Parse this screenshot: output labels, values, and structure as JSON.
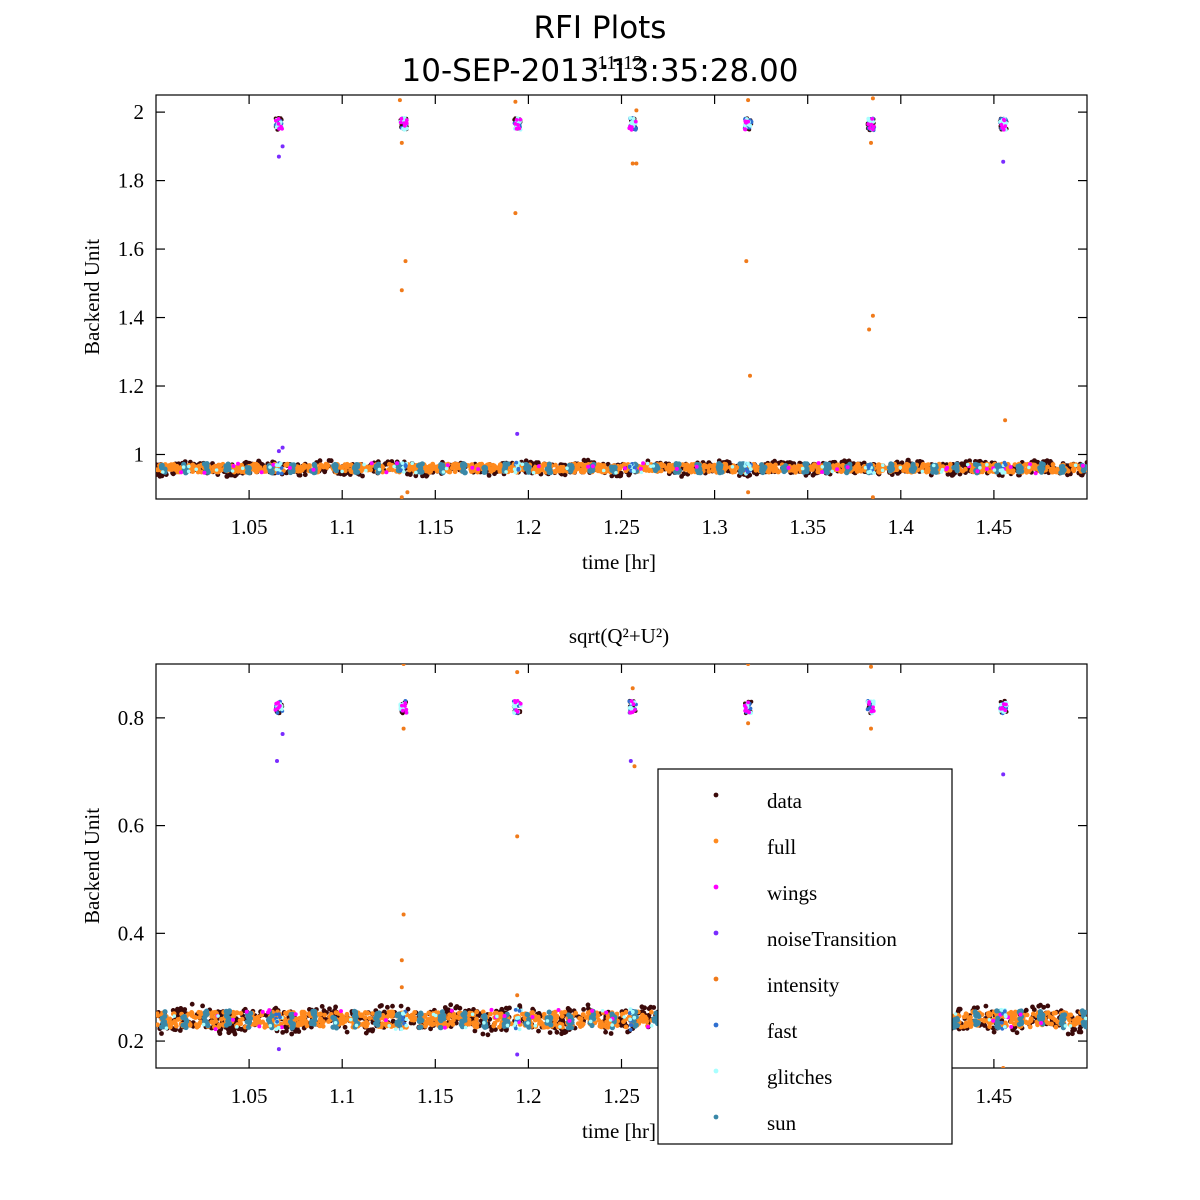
{
  "figure": {
    "title": "RFI Plots",
    "subtitle": "10-SEP-2013:13:35:28.00",
    "panel_label": "11-12"
  },
  "colors": {
    "data": "#3b0a0a",
    "full": "#ff8a1e",
    "wings": "#ff00ff",
    "noiseTransition": "#7a2cff",
    "intensity": "#f07a1a",
    "fast": "#2f6fd0",
    "glitches": "#a8ffff",
    "sun": "#3a88a8"
  },
  "legend": {
    "entries": [
      "data",
      "full",
      "wings",
      "noiseTransition",
      "intensity",
      "fast",
      "glitches",
      "sun"
    ]
  },
  "chart_data": [
    {
      "type": "scatter",
      "title": "",
      "xlabel": "time [hr]",
      "ylabel": "Backend Unit",
      "xlim": [
        1.0,
        1.5
      ],
      "ylim": [
        0.87,
        2.05
      ],
      "xticks": [
        "1.05",
        "1.1",
        "1.15",
        "1.2",
        "1.25",
        "1.3",
        "1.35",
        "1.4",
        "1.45"
      ],
      "xtick_values": [
        1.05,
        1.1,
        1.15,
        1.2,
        1.25,
        1.3,
        1.35,
        1.4,
        1.45
      ],
      "yticks": [
        "1",
        "1.2",
        "1.4",
        "1.6",
        "1.8",
        "2"
      ],
      "ytick_values": [
        1.0,
        1.2,
        1.4,
        1.6,
        1.8,
        2.0
      ],
      "grid": false,
      "baseline": {
        "level": 0.96,
        "spread": 0.015
      },
      "cal_times": [
        1.066,
        1.133,
        1.194,
        1.256,
        1.318,
        1.384,
        1.455
      ],
      "cal_level": 1.965,
      "outliers": [
        {
          "x": 1.132,
          "y": 1.48,
          "series": "intensity"
        },
        {
          "x": 1.134,
          "y": 1.565,
          "series": "intensity"
        },
        {
          "x": 1.193,
          "y": 1.705,
          "series": "intensity"
        },
        {
          "x": 1.317,
          "y": 1.565,
          "series": "intensity"
        },
        {
          "x": 1.319,
          "y": 1.23,
          "series": "intensity"
        },
        {
          "x": 1.383,
          "y": 1.365,
          "series": "intensity"
        },
        {
          "x": 1.385,
          "y": 1.405,
          "series": "intensity"
        },
        {
          "x": 1.456,
          "y": 1.1,
          "series": "intensity"
        },
        {
          "x": 1.066,
          "y": 1.87,
          "series": "noiseTransition"
        },
        {
          "x": 1.068,
          "y": 1.9,
          "series": "noiseTransition"
        },
        {
          "x": 1.256,
          "y": 1.85,
          "series": "intensity"
        },
        {
          "x": 1.258,
          "y": 1.85,
          "series": "intensity"
        },
        {
          "x": 1.455,
          "y": 1.855,
          "series": "noiseTransition"
        },
        {
          "x": 1.131,
          "y": 2.035,
          "series": "intensity"
        },
        {
          "x": 1.193,
          "y": 2.03,
          "series": "intensity"
        },
        {
          "x": 1.318,
          "y": 2.035,
          "series": "intensity"
        },
        {
          "x": 1.385,
          "y": 2.04,
          "series": "intensity"
        },
        {
          "x": 1.258,
          "y": 2.005,
          "series": "intensity"
        },
        {
          "x": 1.132,
          "y": 1.91,
          "series": "intensity"
        },
        {
          "x": 1.384,
          "y": 1.91,
          "series": "intensity"
        },
        {
          "x": 1.194,
          "y": 1.06,
          "series": "noiseTransition"
        },
        {
          "x": 1.066,
          "y": 1.01,
          "series": "noiseTransition"
        },
        {
          "x": 1.068,
          "y": 1.02,
          "series": "noiseTransition"
        },
        {
          "x": 1.132,
          "y": 0.875,
          "series": "intensity"
        },
        {
          "x": 1.135,
          "y": 0.89,
          "series": "intensity"
        },
        {
          "x": 1.318,
          "y": 0.89,
          "series": "intensity"
        },
        {
          "x": 1.385,
          "y": 0.875,
          "series": "intensity"
        }
      ]
    },
    {
      "type": "scatter",
      "title": "sqrt(Q²+U²)",
      "xlabel": "time [hr]",
      "ylabel": "Backend Unit",
      "xlim": [
        1.0,
        1.5
      ],
      "ylim": [
        0.15,
        0.9
      ],
      "xticks": [
        "1.05",
        "1.1",
        "1.15",
        "1.2",
        "1.25",
        "1.3",
        "1.35",
        "1.4",
        "1.45"
      ],
      "xtick_values": [
        1.05,
        1.1,
        1.15,
        1.2,
        1.25,
        1.3,
        1.35,
        1.4,
        1.45
      ],
      "yticks": [
        "0.2",
        "0.4",
        "0.6",
        "0.8"
      ],
      "ytick_values": [
        0.2,
        0.4,
        0.6,
        0.8
      ],
      "grid": false,
      "baseline": {
        "level": 0.24,
        "spread": 0.018
      },
      "cal_times": [
        1.066,
        1.133,
        1.194,
        1.256,
        1.318,
        1.384,
        1.455
      ],
      "cal_level": 0.82,
      "outliers": [
        {
          "x": 1.065,
          "y": 0.72,
          "series": "noiseTransition"
        },
        {
          "x": 1.068,
          "y": 0.77,
          "series": "noiseTransition"
        },
        {
          "x": 1.132,
          "y": 0.3,
          "series": "intensity"
        },
        {
          "x": 1.132,
          "y": 0.35,
          "series": "intensity"
        },
        {
          "x": 1.133,
          "y": 0.435,
          "series": "intensity"
        },
        {
          "x": 1.194,
          "y": 0.58,
          "series": "intensity"
        },
        {
          "x": 1.194,
          "y": 0.285,
          "series": "intensity"
        },
        {
          "x": 1.255,
          "y": 0.72,
          "series": "noiseTransition"
        },
        {
          "x": 1.257,
          "y": 0.71,
          "series": "intensity"
        },
        {
          "x": 1.455,
          "y": 0.695,
          "series": "noiseTransition"
        },
        {
          "x": 1.133,
          "y": 0.9,
          "series": "intensity"
        },
        {
          "x": 1.194,
          "y": 0.885,
          "series": "intensity"
        },
        {
          "x": 1.318,
          "y": 0.9,
          "series": "intensity"
        },
        {
          "x": 1.384,
          "y": 0.895,
          "series": "intensity"
        },
        {
          "x": 1.256,
          "y": 0.855,
          "series": "intensity"
        },
        {
          "x": 1.133,
          "y": 0.78,
          "series": "intensity"
        },
        {
          "x": 1.318,
          "y": 0.79,
          "series": "intensity"
        },
        {
          "x": 1.384,
          "y": 0.78,
          "series": "intensity"
        },
        {
          "x": 1.066,
          "y": 0.185,
          "series": "noiseTransition"
        },
        {
          "x": 1.194,
          "y": 0.175,
          "series": "noiseTransition"
        },
        {
          "x": 1.455,
          "y": 0.15,
          "series": "intensity"
        }
      ]
    }
  ]
}
